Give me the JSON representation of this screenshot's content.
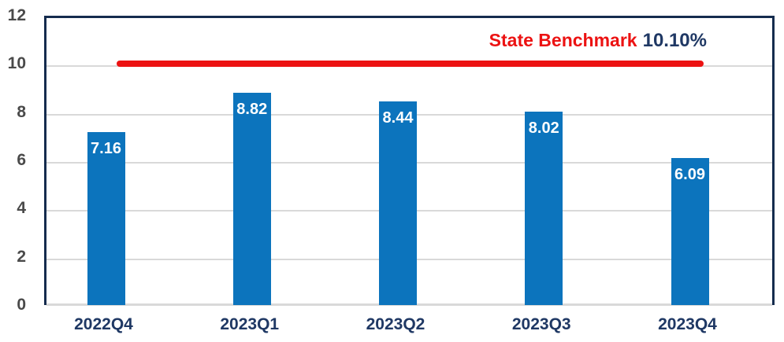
{
  "chart_data": {
    "type": "bar",
    "title": "",
    "xlabel": "",
    "ylabel": "",
    "categories": [
      "2022Q4",
      "2023Q1",
      "2023Q2",
      "2023Q3",
      "2023Q4"
    ],
    "values": [
      7.16,
      8.82,
      8.44,
      8.02,
      6.09
    ],
    "bar_labels": [
      "7.16",
      "8.82",
      "8.44",
      "8.02",
      "6.09"
    ],
    "y_ticks": [
      0,
      2,
      4,
      6,
      8,
      10,
      12
    ],
    "ylim": [
      0,
      12
    ],
    "grid": "horizontal",
    "legend": "none",
    "benchmark": {
      "label": "State Benchmark",
      "value_label": "10.10%",
      "value": 10.1
    },
    "colors": {
      "bar": "#0C74BD",
      "benchmark_line": "#EC1212",
      "benchmark_text": "#EC1212",
      "navy_text": "#1F3864",
      "plot_border": "#152C4E",
      "gridline": "#D9D9D9",
      "tick_text": "#4A4A4A",
      "bar_value_text": "#FFFFFF"
    }
  }
}
